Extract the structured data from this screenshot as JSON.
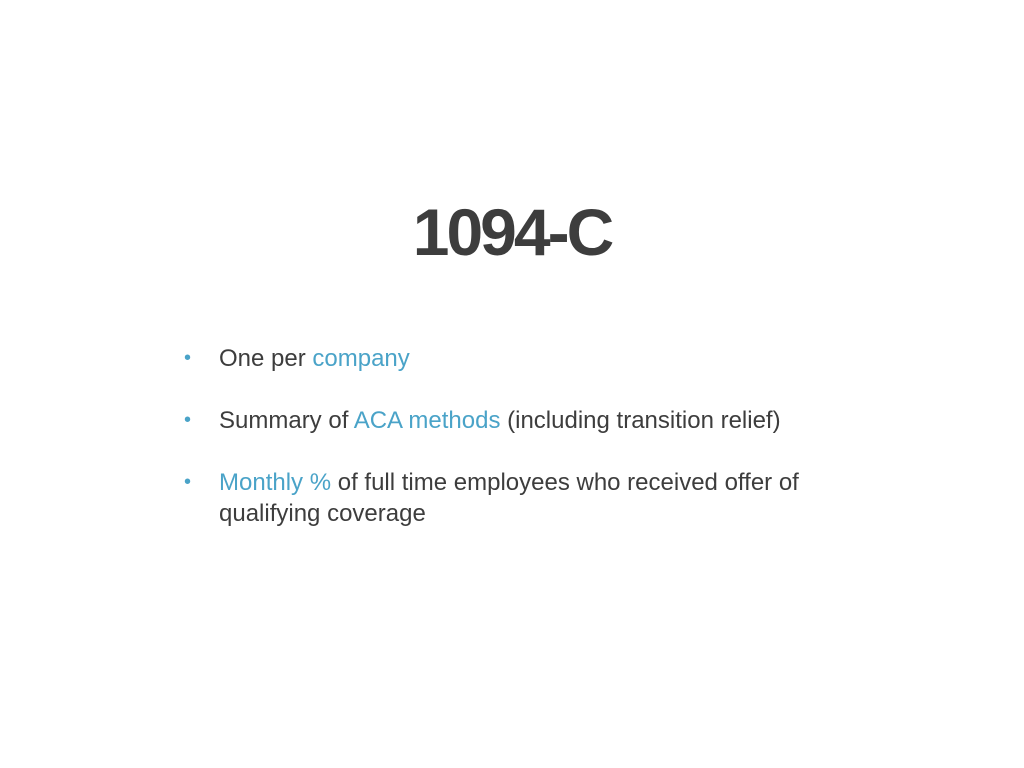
{
  "slide": {
    "title": "1094-C",
    "bullet_symbol": "•",
    "accent_color": "#4aa3c8",
    "text_color": "#3d3d3d",
    "bullets": [
      {
        "before": "One per ",
        "highlight": "company",
        "after": ""
      },
      {
        "before": "Summary of ",
        "highlight": "ACA methods",
        "after": " (including transition relief)"
      },
      {
        "before": "",
        "highlight": "Monthly %",
        "after": " of full time employees who received offer of qualifying coverage"
      }
    ]
  }
}
